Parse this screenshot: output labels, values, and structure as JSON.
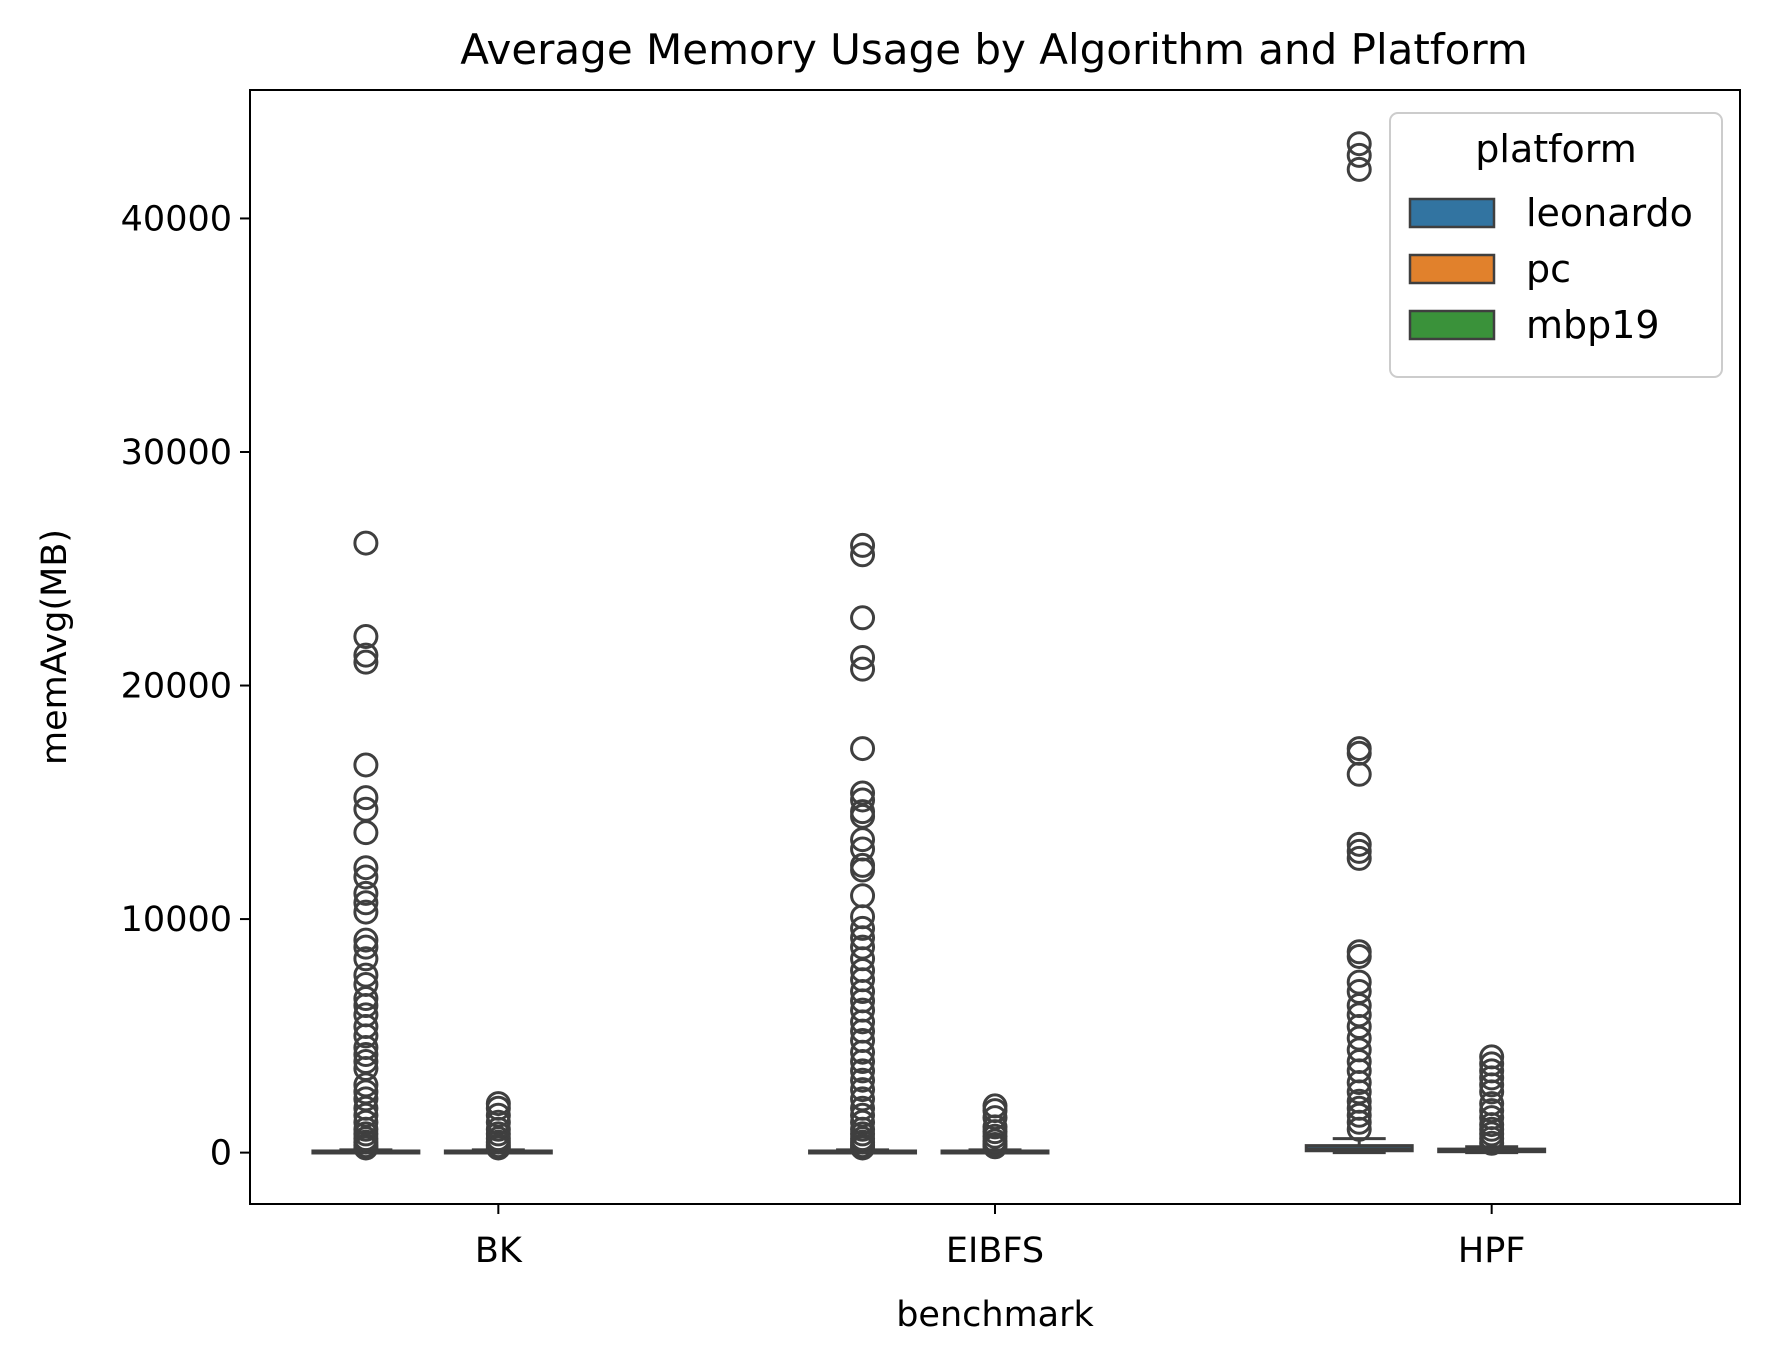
{
  "chart_data": {
    "type": "box",
    "title": "Average Memory Usage by Algorithm and Platform",
    "xlabel": "benchmark",
    "ylabel": "memAvg(MB)",
    "categories": [
      "BK",
      "EIBFS",
      "HPF"
    ],
    "ylim": [
      -2200,
      45500
    ],
    "yticks": [
      0,
      10000,
      20000,
      30000,
      40000
    ],
    "yticklabels": [
      "0",
      "10000",
      "20000",
      "30000",
      "40000"
    ],
    "grid": false,
    "legend": {
      "title": "platform",
      "placement": "top-right",
      "entries": [
        {
          "name": "leonardo",
          "color": "#3274a1"
        },
        {
          "name": "pc",
          "color": "#e1812c"
        },
        {
          "name": "mbp19",
          "color": "#3a923a"
        }
      ]
    },
    "series": [
      {
        "name": "leonardo",
        "color": "#3274a1",
        "boxes": [
          {
            "category": "BK",
            "whisker_low": 0,
            "q1": 20,
            "median": 40,
            "q3": 70,
            "whisker_high": 120,
            "outliers": [
              26100,
              22100,
              21300,
              21000,
              16600,
              15200,
              14700,
              13700,
              12200,
              11800,
              11100,
              10700,
              10300,
              9100,
              8800,
              8300,
              7600,
              7200,
              6600,
              6300,
              5900,
              5400,
              5000,
              4500,
              4200,
              3900,
              3600,
              2900,
              2600,
              2300,
              1900,
              1600,
              1300,
              1000,
              800,
              600,
              450,
              300,
              200
            ]
          },
          {
            "category": "EIBFS",
            "whisker_low": 0,
            "q1": 20,
            "median": 40,
            "q3": 70,
            "whisker_high": 120,
            "outliers": [
              26000,
              25600,
              22900,
              21200,
              20700,
              17300,
              15400,
              15100,
              14600,
              14400,
              13400,
              13000,
              12300,
              12100,
              11000,
              10100,
              9600,
              9200,
              8800,
              8300,
              7800,
              7400,
              6900,
              6500,
              6100,
              5600,
              5200,
              4800,
              4300,
              3900,
              3500,
              3100,
              2700,
              2300,
              1900,
              1600,
              1300,
              1000,
              800,
              600,
              450,
              300,
              200
            ]
          },
          {
            "category": "HPF",
            "whisker_low": 0,
            "q1": 80,
            "median": 160,
            "q3": 300,
            "whisker_high": 600,
            "outliers": [
              43200,
              42700,
              42100,
              17300,
              17100,
              16200,
              13200,
              12900,
              12600,
              8600,
              8400,
              7300,
              6900,
              6300,
              5900,
              5400,
              4900,
              4400,
              3900,
              3500,
              3000,
              2600,
              2200,
              1900,
              1600,
              1300,
              1000
            ]
          }
        ]
      },
      {
        "name": "pc",
        "color": "#e1812c",
        "boxes": [
          {
            "category": "BK",
            "whisker_low": 0,
            "q1": 20,
            "median": 40,
            "q3": 70,
            "whisker_high": 120,
            "outliers": [
              2100,
              1900,
              1600,
              1300,
              1000,
              800,
              600,
              450,
              300,
              200
            ]
          },
          {
            "category": "EIBFS",
            "whisker_low": 0,
            "q1": 20,
            "median": 40,
            "q3": 70,
            "whisker_high": 120,
            "outliers": [
              2000,
              1800,
              1500,
              1100,
              900,
              700,
              500,
              350,
              250
            ]
          },
          {
            "category": "HPF",
            "whisker_low": 0,
            "q1": 40,
            "median": 80,
            "q3": 150,
            "whisker_high": 250,
            "outliers": [
              4100,
              3800,
              3500,
              3200,
              2900,
              2600,
              2100,
              1800,
              1500,
              1200,
              1000,
              800,
              600,
              400
            ]
          }
        ]
      }
    ]
  }
}
